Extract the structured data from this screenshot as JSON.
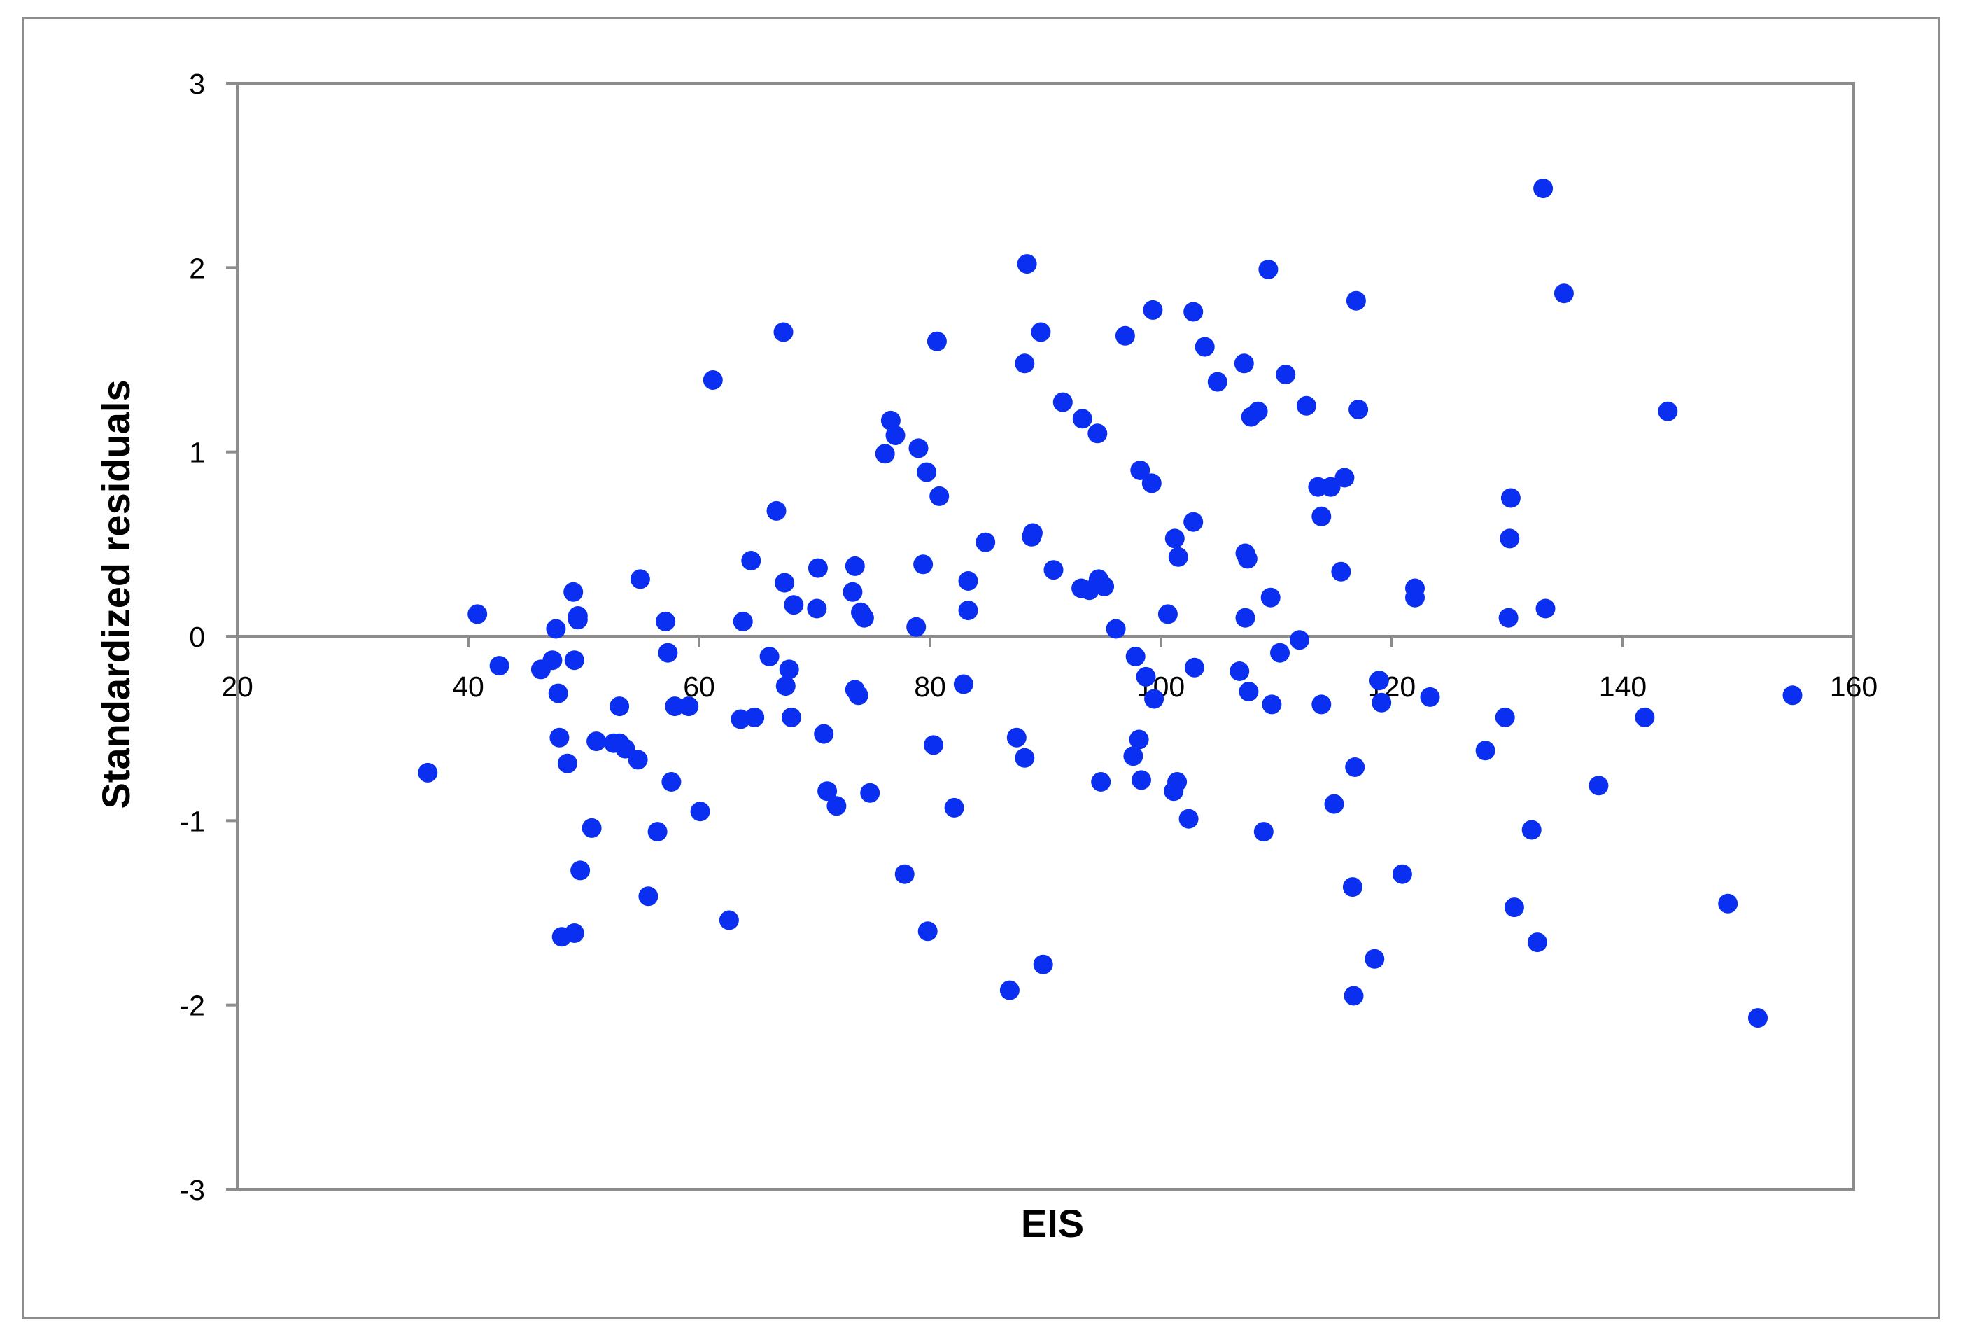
{
  "chart_data": {
    "type": "scatter",
    "title": "",
    "xlabel": "EIS",
    "ylabel": "Standardized residuals",
    "xlim": [
      20,
      160
    ],
    "ylim": [
      -3,
      3
    ],
    "xticks": [
      20,
      40,
      60,
      80,
      100,
      120,
      140,
      160
    ],
    "yticks": [
      -3,
      -2,
      -1,
      0,
      1,
      2,
      3
    ],
    "grid": false,
    "legend": "none",
    "marker_color": "#0a2ff0",
    "series": [
      {
        "points": [
          [
            36.5,
            -0.74
          ],
          [
            40.8,
            0.12
          ],
          [
            42.7,
            -0.16
          ],
          [
            46.3,
            -0.18
          ],
          [
            47.3,
            -0.13
          ],
          [
            47.6,
            0.04
          ],
          [
            47.8,
            -0.31
          ],
          [
            47.9,
            -0.55
          ],
          [
            48.1,
            -1.63
          ],
          [
            48.6,
            -0.69
          ],
          [
            49.1,
            0.24
          ],
          [
            49.2,
            -1.61
          ],
          [
            49.2,
            -0.13
          ],
          [
            49.5,
            0.11
          ],
          [
            49.5,
            0.09
          ],
          [
            49.7,
            -1.27
          ],
          [
            50.7,
            -1.04
          ],
          [
            51.1,
            -0.57
          ],
          [
            52.6,
            -0.58
          ],
          [
            53.1,
            -0.38
          ],
          [
            53.1,
            -0.58
          ],
          [
            53.6,
            -0.61
          ],
          [
            54.7,
            -0.67
          ],
          [
            54.9,
            0.31
          ],
          [
            55.6,
            -1.41
          ],
          [
            56.4,
            -1.06
          ],
          [
            57.1,
            0.08
          ],
          [
            57.3,
            -0.09
          ],
          [
            57.6,
            -0.79
          ],
          [
            57.9,
            -0.38
          ],
          [
            59.1,
            -0.38
          ],
          [
            60.1,
            -0.95
          ],
          [
            61.2,
            1.39
          ],
          [
            62.6,
            -1.54
          ],
          [
            63.6,
            -0.45
          ],
          [
            63.8,
            0.08
          ],
          [
            64.5,
            0.41
          ],
          [
            64.8,
            -0.44
          ],
          [
            66.1,
            -0.11
          ],
          [
            66.7,
            0.68
          ],
          [
            67.3,
            1.65
          ],
          [
            67.4,
            0.29
          ],
          [
            67.5,
            -0.27
          ],
          [
            67.8,
            -0.18
          ],
          [
            68.0,
            -0.44
          ],
          [
            68.2,
            0.17
          ],
          [
            70.2,
            0.15
          ],
          [
            70.3,
            0.37
          ],
          [
            70.8,
            -0.53
          ],
          [
            71.1,
            -0.84
          ],
          [
            71.9,
            -0.92
          ],
          [
            73.3,
            0.24
          ],
          [
            73.5,
            0.38
          ],
          [
            73.5,
            -0.29
          ],
          [
            73.8,
            -0.32
          ],
          [
            74.0,
            0.13
          ],
          [
            74.3,
            0.1
          ],
          [
            74.8,
            -0.85
          ],
          [
            76.1,
            0.99
          ],
          [
            76.6,
            1.17
          ],
          [
            77.0,
            1.09
          ],
          [
            77.8,
            -1.29
          ],
          [
            78.8,
            0.05
          ],
          [
            79.0,
            1.02
          ],
          [
            79.4,
            0.39
          ],
          [
            79.7,
            0.89
          ],
          [
            79.8,
            -1.6
          ],
          [
            80.3,
            -0.59
          ],
          [
            80.6,
            1.6
          ],
          [
            80.8,
            0.76
          ],
          [
            82.1,
            -0.93
          ],
          [
            82.9,
            -0.26
          ],
          [
            83.3,
            0.3
          ],
          [
            83.3,
            0.14
          ],
          [
            84.8,
            0.51
          ],
          [
            86.9,
            -1.92
          ],
          [
            87.5,
            -0.55
          ],
          [
            88.2,
            -0.66
          ],
          [
            88.2,
            1.48
          ],
          [
            88.4,
            2.02
          ],
          [
            88.8,
            0.54
          ],
          [
            88.9,
            0.56
          ],
          [
            89.6,
            1.65
          ],
          [
            89.8,
            -1.78
          ],
          [
            90.7,
            0.36
          ],
          [
            91.5,
            1.27
          ],
          [
            93.1,
            0.26
          ],
          [
            93.2,
            1.18
          ],
          [
            93.8,
            0.25
          ],
          [
            94.5,
            1.1
          ],
          [
            94.6,
            0.31
          ],
          [
            94.8,
            -0.79
          ],
          [
            95.1,
            0.27
          ],
          [
            96.1,
            0.04
          ],
          [
            96.9,
            1.63
          ],
          [
            97.6,
            -0.65
          ],
          [
            97.8,
            -0.11
          ],
          [
            98.1,
            -0.56
          ],
          [
            98.2,
            0.9
          ],
          [
            98.3,
            -0.78
          ],
          [
            98.7,
            -0.22
          ],
          [
            99.2,
            0.83
          ],
          [
            99.3,
            1.77
          ],
          [
            99.4,
            -0.34
          ],
          [
            100.6,
            0.12
          ],
          [
            101.1,
            -0.84
          ],
          [
            101.2,
            0.53
          ],
          [
            101.4,
            -0.79
          ],
          [
            101.5,
            0.43
          ],
          [
            102.4,
            -0.99
          ],
          [
            102.8,
            1.76
          ],
          [
            102.8,
            0.62
          ],
          [
            102.9,
            -0.17
          ],
          [
            103.8,
            1.57
          ],
          [
            104.9,
            1.38
          ],
          [
            106.8,
            -0.19
          ],
          [
            107.2,
            1.48
          ],
          [
            107.3,
            0.45
          ],
          [
            107.3,
            0.1
          ],
          [
            107.5,
            0.42
          ],
          [
            107.6,
            -0.3
          ],
          [
            107.8,
            1.19
          ],
          [
            108.4,
            1.22
          ],
          [
            108.9,
            -1.06
          ],
          [
            109.3,
            1.99
          ],
          [
            109.6,
            -0.37
          ],
          [
            109.5,
            0.21
          ],
          [
            110.3,
            -0.09
          ],
          [
            110.8,
            1.42
          ],
          [
            112.0,
            -0.02
          ],
          [
            112.6,
            1.25
          ],
          [
            113.6,
            0.81
          ],
          [
            113.9,
            -0.37
          ],
          [
            113.9,
            0.65
          ],
          [
            114.7,
            0.81
          ],
          [
            115.0,
            -0.91
          ],
          [
            115.6,
            0.35
          ],
          [
            115.9,
            0.86
          ],
          [
            116.6,
            -1.36
          ],
          [
            116.7,
            -1.95
          ],
          [
            116.8,
            -0.71
          ],
          [
            116.9,
            1.82
          ],
          [
            117.1,
            1.23
          ],
          [
            118.5,
            -1.75
          ],
          [
            118.9,
            -0.24
          ],
          [
            119.1,
            -0.36
          ],
          [
            120.9,
            -1.29
          ],
          [
            122.0,
            0.26
          ],
          [
            122.0,
            0.21
          ],
          [
            123.3,
            -0.33
          ],
          [
            128.1,
            -0.62
          ],
          [
            129.8,
            -0.44
          ],
          [
            130.1,
            0.1
          ],
          [
            130.2,
            0.53
          ],
          [
            130.3,
            0.75
          ],
          [
            130.6,
            -1.47
          ],
          [
            132.1,
            -1.05
          ],
          [
            132.6,
            -1.66
          ],
          [
            133.1,
            2.43
          ],
          [
            133.3,
            0.15
          ],
          [
            134.9,
            1.86
          ],
          [
            137.9,
            -0.81
          ],
          [
            141.9,
            -0.44
          ],
          [
            143.9,
            1.22
          ],
          [
            149.1,
            -1.45
          ],
          [
            151.7,
            -2.07
          ],
          [
            154.7,
            -0.32
          ]
        ]
      }
    ]
  }
}
